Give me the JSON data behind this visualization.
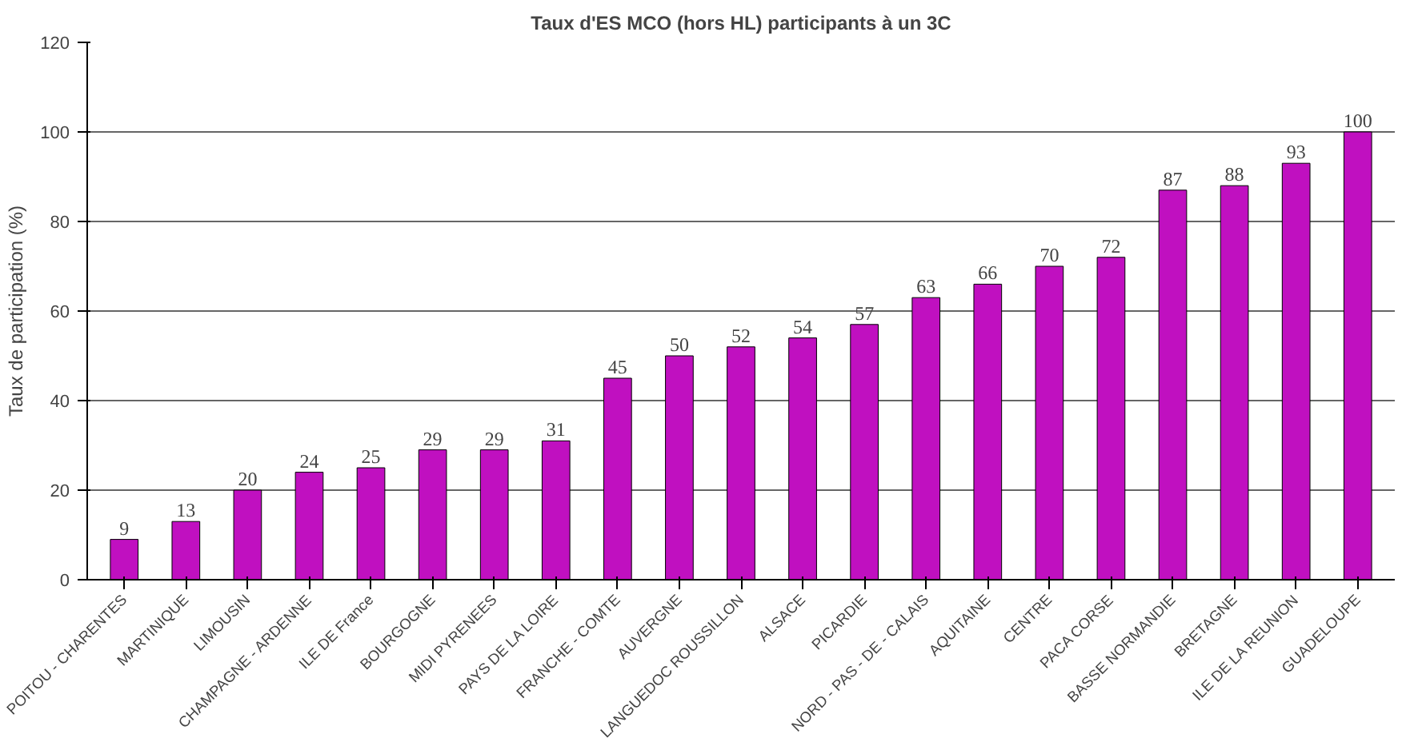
{
  "chart_data": {
    "type": "bar",
    "title": "Taux d'ES MCO (hors HL) participants à un 3C",
    "ylabel": "Taux de participation (%)",
    "categories": [
      "POITOU - CHARENTES",
      "MARTINIQUE",
      "LIMOUSIN",
      "CHAMPAGNE - ARDENNE",
      "ILE DE France",
      "BOURGOGNE",
      "MIDI PYRENEES",
      "PAYS DE LA LOIRE",
      "FRANCHE - COMTE",
      "AUVERGNE",
      "LANGUEDOC ROUSSILLON",
      "ALSACE",
      "PICARDIE",
      "NORD - PAS - DE - CALAIS",
      "AQUITAINE",
      "CENTRE",
      "PACA CORSE",
      "BASSE NORMANDIE",
      "BRETAGNE",
      "ILE DE LA REUNION",
      "GUADELOUPE"
    ],
    "values": [
      9,
      13,
      20,
      24,
      25,
      29,
      29,
      31,
      45,
      50,
      52,
      54,
      57,
      63,
      66,
      70,
      72,
      87,
      88,
      93,
      100
    ],
    "color": "#c010c0",
    "ylim": [
      0,
      120
    ],
    "yticks": [
      0,
      20,
      40,
      60,
      80,
      100,
      120
    ],
    "grid": "y",
    "data_labels": true
  }
}
